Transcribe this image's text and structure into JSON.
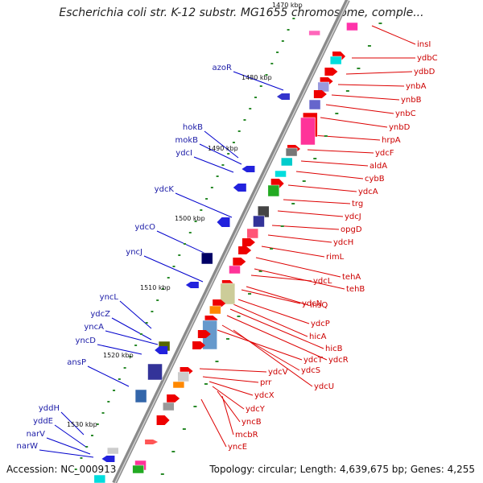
{
  "title": "Escherichia coli str. K-12 substr. MG1655 chromosome, comple...",
  "accession": "Accession: NC_000913",
  "topology": "Topology: circular; Length: 4,639,675 bp; Genes: 4,255",
  "kbp_labels": [
    "1470 kbp",
    "1480 kbp",
    "1490 kbp",
    "1500 kbp",
    "1510 kbp",
    "1520 kbp",
    "1530 kbp"
  ],
  "genes_right": [
    "insI",
    "ydbC",
    "ydbD",
    "ynbA",
    "ynbB",
    "ynbC",
    "ynbD",
    "hrpA",
    "ydcF",
    "aldA",
    "cybB",
    "ydcA",
    "trg",
    "ydcJ",
    "opgD",
    "ydcH",
    "rimL",
    "tehA",
    "tehB",
    "ydcL",
    "insQ",
    "ydcN",
    "ydcP",
    "hicA",
    "hicB",
    "ydcR",
    "ydcS",
    "ydcT",
    "ydcU",
    "ydcV",
    "prr",
    "ydcX",
    "ydcY",
    "yncB",
    "mcbR",
    "yncE"
  ],
  "genes_left": [
    "azoR",
    "hokB",
    "mokB",
    "ydcI",
    "ydcK",
    "ydcO",
    "yncJ",
    "yncL",
    "ydcZ",
    "yncA",
    "yncD",
    "ansP",
    "yddH",
    "yddE",
    "narV",
    "narW"
  ],
  "colors": {
    "forward": "#ee0000",
    "reverse": "#0000ee",
    "backbone": "#888888"
  }
}
